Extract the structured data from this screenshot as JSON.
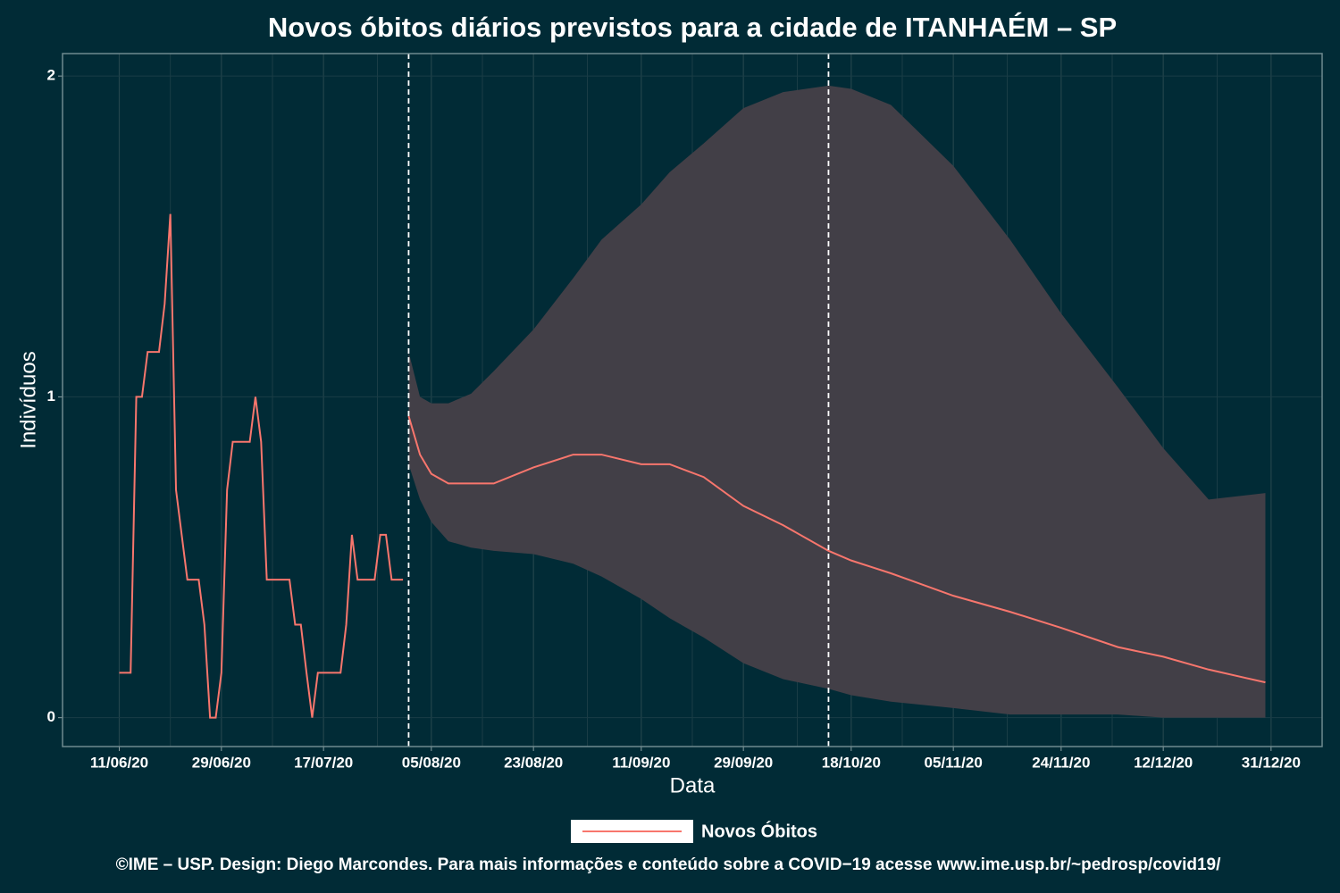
{
  "chart_data": {
    "type": "line",
    "title": "Novos óbitos diários previstos para a cidade de ITANHAÉM – SP",
    "x_label": "Data",
    "y_label": "Indivíduos",
    "caption": "©IME – USP. Design: Diego Marcondes. Para mais informações e conteúdo sobre a COVID−19 acesse www.ime.usp.br/~pedrosp/covid19/",
    "xlim": [
      "01/06/20",
      "09/01/21"
    ],
    "xticks": [
      "11/06/20",
      "29/06/20",
      "17/07/20",
      "05/08/20",
      "23/08/20",
      "11/09/20",
      "29/09/20",
      "18/10/20",
      "05/11/20",
      "24/11/20",
      "12/12/20",
      "31/12/20"
    ],
    "ylim": [
      -0.09,
      2.07
    ],
    "yticks": [
      0,
      1,
      2
    ],
    "grid": true,
    "vlines": [
      "01/08/20",
      "14/10/20"
    ],
    "series": [
      {
        "name": "Novos Óbitos",
        "color": "#f8766d",
        "x": [
          "11/06/20",
          "12/06/20",
          "13/06/20",
          "14/06/20",
          "15/06/20",
          "16/06/20",
          "17/06/20",
          "18/06/20",
          "19/06/20",
          "20/06/20",
          "21/06/20",
          "22/06/20",
          "23/06/20",
          "24/06/20",
          "25/06/20",
          "26/06/20",
          "27/06/20",
          "28/06/20",
          "29/06/20",
          "30/06/20",
          "01/07/20",
          "02/07/20",
          "03/07/20",
          "04/07/20",
          "05/07/20",
          "06/07/20",
          "07/07/20",
          "08/07/20",
          "09/07/20",
          "10/07/20",
          "11/07/20",
          "12/07/20",
          "13/07/20",
          "14/07/20",
          "15/07/20",
          "16/07/20",
          "17/07/20",
          "18/07/20",
          "19/07/20",
          "20/07/20",
          "21/07/20",
          "22/07/20",
          "23/07/20",
          "24/07/20",
          "25/07/20",
          "26/07/20",
          "27/07/20",
          "28/07/20",
          "29/07/20",
          "30/07/20",
          "31/07/20"
        ],
        "values": [
          0.14,
          0.14,
          0.14,
          1,
          1,
          1.14,
          1.14,
          1.14,
          1.29,
          1.57,
          0.71,
          0.57,
          0.43,
          0.43,
          0.43,
          0.29,
          0,
          0,
          0.14,
          0.71,
          0.86,
          0.86,
          0.86,
          0.86,
          1,
          0.86,
          0.43,
          0.43,
          0.43,
          0.43,
          0.43,
          0.29,
          0.29,
          0.14,
          0,
          0.14,
          0.14,
          0.14,
          0.14,
          0.14,
          0.29,
          0.57,
          0.43,
          0.43,
          0.43,
          0.43,
          0.57,
          0.57,
          0.43,
          0.43,
          0.43
        ]
      }
    ],
    "forecast": {
      "color": "#f8766d",
      "band_color": "#423f47",
      "x": [
        "01/08/20",
        "03/08/20",
        "05/08/20",
        "08/08/20",
        "12/08/20",
        "16/08/20",
        "23/08/20",
        "30/08/20",
        "04/09/20",
        "11/09/20",
        "16/09/20",
        "22/09/20",
        "29/09/20",
        "06/10/20",
        "14/10/20",
        "18/10/20",
        "25/10/20",
        "05/11/20",
        "15/11/20",
        "24/11/20",
        "04/12/20",
        "12/12/20",
        "20/12/20",
        "30/12/20"
      ],
      "values": [
        0.94,
        0.82,
        0.76,
        0.73,
        0.73,
        0.73,
        0.78,
        0.82,
        0.82,
        0.79,
        0.79,
        0.75,
        0.66,
        0.6,
        0.52,
        0.49,
        0.45,
        0.38,
        0.33,
        0.28,
        0.22,
        0.19,
        0.15,
        0.11
      ],
      "lower": [
        0.79,
        0.68,
        0.61,
        0.55,
        0.53,
        0.52,
        0.51,
        0.48,
        0.44,
        0.37,
        0.31,
        0.25,
        0.17,
        0.12,
        0.09,
        0.07,
        0.05,
        0.03,
        0.01,
        0.01,
        0.01,
        0,
        0,
        0
      ],
      "upper": [
        1.14,
        1,
        0.98,
        0.98,
        1.01,
        1.08,
        1.21,
        1.37,
        1.49,
        1.6,
        1.7,
        1.79,
        1.9,
        1.95,
        1.97,
        1.96,
        1.91,
        1.72,
        1.49,
        1.26,
        1.03,
        0.84,
        0.68,
        0.7
      ]
    }
  }
}
